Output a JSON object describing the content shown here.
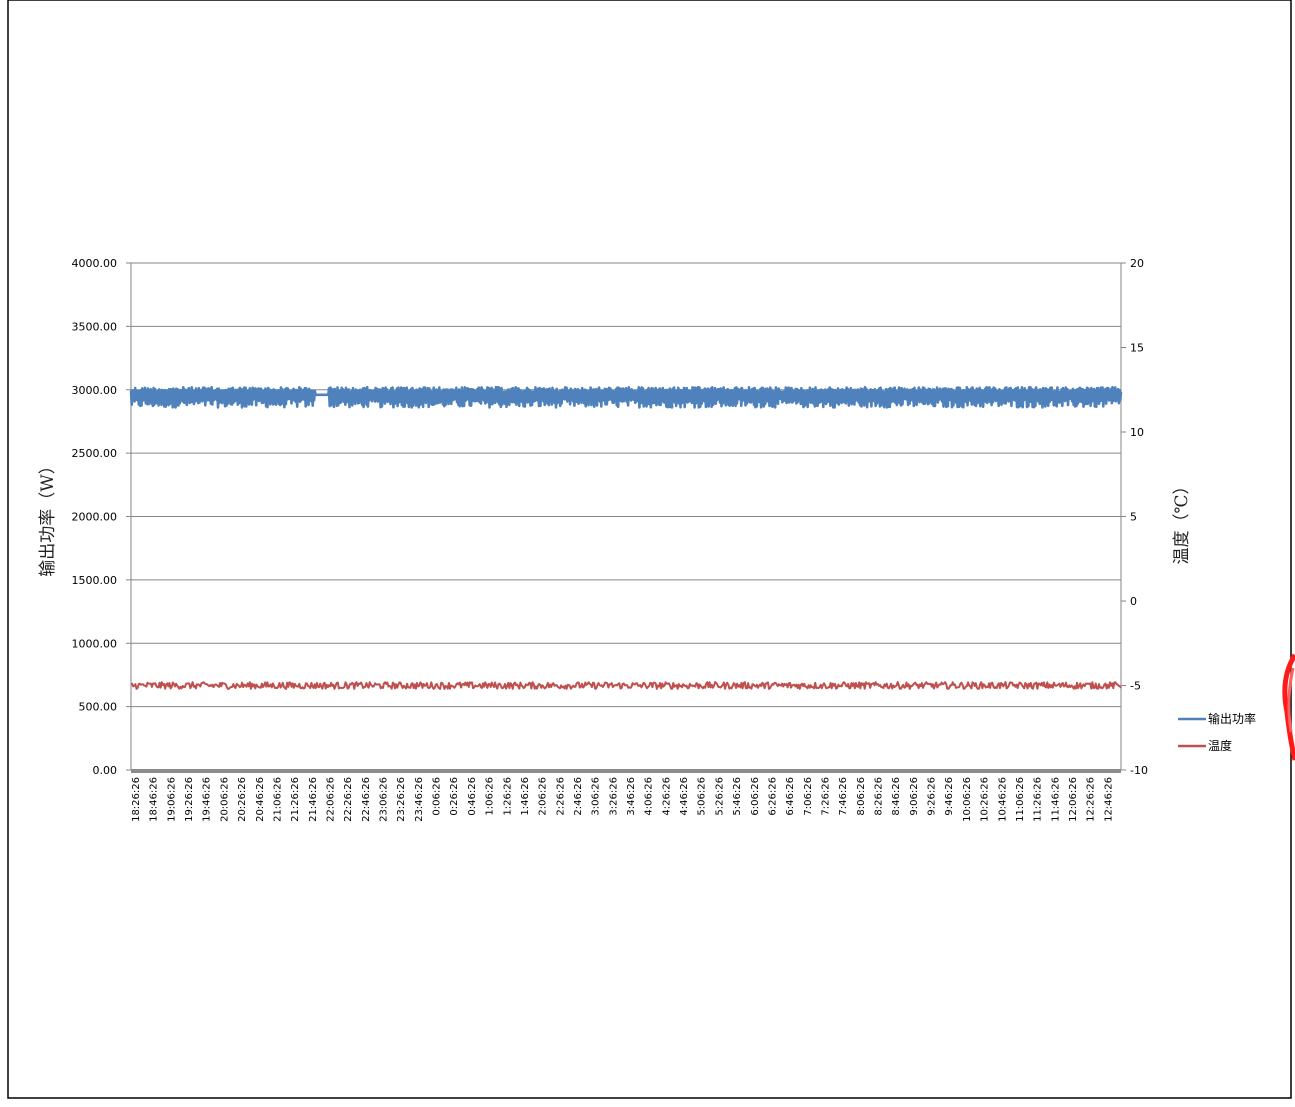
{
  "chart_data": {
    "type": "line",
    "ylabel": "输出功率（W）",
    "y2label": "温度（℃）",
    "ylim": [
      0,
      4000
    ],
    "y2lim": [
      -10,
      20
    ],
    "y_ticks": [
      "0.00",
      "500.00",
      "1000.00",
      "1500.00",
      "2000.00",
      "2500.00",
      "3000.00",
      "3500.00",
      "4000.00"
    ],
    "y2_ticks": [
      "-10",
      "-5",
      "0",
      "5",
      "10",
      "15",
      "20"
    ],
    "x_tick_labels": [
      "18:26:26",
      "18:46:26",
      "19:06:26",
      "19:26:26",
      "19:46:26",
      "20:06:26",
      "20:26:26",
      "20:46:26",
      "21:06:26",
      "21:26:26",
      "21:46:26",
      "22:06:26",
      "22:26:26",
      "22:46:26",
      "23:06:26",
      "23:26:26",
      "23:46:26",
      "0:06:26",
      "0:26:26",
      "0:46:26",
      "1:06:26",
      "1:26:26",
      "1:46:26",
      "2:06:26",
      "2:26:26",
      "2:46:26",
      "3:06:26",
      "3:26:26",
      "3:46:26",
      "4:06:26",
      "4:26:26",
      "4:46:26",
      "5:06:26",
      "5:26:26",
      "5:46:26",
      "6:06:26",
      "6:26:26",
      "6:46:26",
      "7:06:26",
      "7:26:26",
      "7:46:26",
      "8:06:26",
      "8:26:26",
      "8:46:26",
      "9:06:26",
      "9:26:26",
      "9:46:26",
      "10:06:26",
      "10:26:26",
      "10:46:26",
      "11:06:26",
      "11:26:26",
      "11:46:26",
      "12:06:26",
      "12:26:26",
      "12:46:26"
    ],
    "grid": true,
    "legend_position": "right",
    "series": [
      {
        "name": "输出功率",
        "axis": "left",
        "color": "#4f81bd",
        "range": [
          2860,
          3020
        ],
        "typical": 2940
      },
      {
        "name": "温度",
        "axis": "right",
        "color": "#c0504d",
        "range": [
          -5.2,
          -4.8
        ],
        "typical": -5.0
      }
    ]
  }
}
